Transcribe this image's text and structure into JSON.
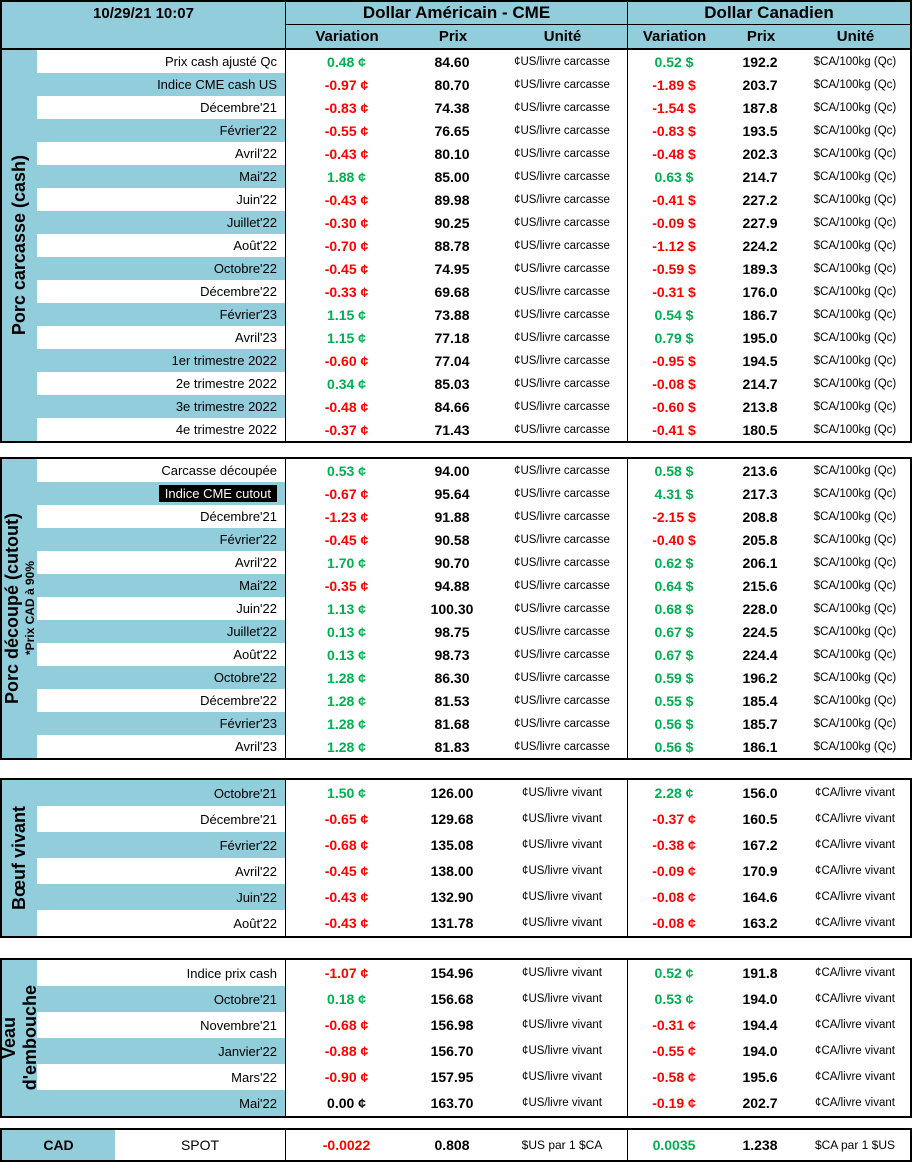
{
  "header": {
    "timestamp": "10/29/21 10:07",
    "us_group_title": "Dollar Américain - CME",
    "ca_group_title": "Dollar Canadien",
    "columns": {
      "variation": "Variation",
      "prix": "Prix",
      "unite": "Unité"
    }
  },
  "colors": {
    "panel_blue": "#92CDDC",
    "positive_green": "#00B050",
    "negative_red": "#FF0000",
    "highlight_black": "#000000"
  },
  "sections": [
    {
      "id": "porc-carcasse-cash",
      "label_lines": [
        {
          "text": "Porc carcasse (cash)",
          "size": "lg"
        }
      ],
      "unit_us": "¢US/livre carcasse",
      "unit_ca": "$CA/100kg (Qc)",
      "first_row_shaded": false,
      "rows": [
        {
          "label": "Prix cash ajusté Qc",
          "us_variation": "0.48 ¢",
          "us_prix": "84.60",
          "ca_variation": "0.52 $",
          "ca_prix": "192.2"
        },
        {
          "label": "Indice CME cash US",
          "us_variation": "-0.97 ¢",
          "us_prix": "80.70",
          "ca_variation": "-1.89 $",
          "ca_prix": "203.7"
        },
        {
          "label": "Décembre'21",
          "us_variation": "-0.83 ¢",
          "us_prix": "74.38",
          "ca_variation": "-1.54 $",
          "ca_prix": "187.8"
        },
        {
          "label": "Février'22",
          "us_variation": "-0.55 ¢",
          "us_prix": "76.65",
          "ca_variation": "-0.83 $",
          "ca_prix": "193.5"
        },
        {
          "label": "Avril'22",
          "us_variation": "-0.43 ¢",
          "us_prix": "80.10",
          "ca_variation": "-0.48 $",
          "ca_prix": "202.3"
        },
        {
          "label": "Mai'22",
          "us_variation": "1.88 ¢",
          "us_prix": "85.00",
          "ca_variation": "0.63 $",
          "ca_prix": "214.7"
        },
        {
          "label": "Juin'22",
          "us_variation": "-0.43 ¢",
          "us_prix": "89.98",
          "ca_variation": "-0.41 $",
          "ca_prix": "227.2"
        },
        {
          "label": "Juillet'22",
          "us_variation": "-0.30 ¢",
          "us_prix": "90.25",
          "ca_variation": "-0.09 $",
          "ca_prix": "227.9"
        },
        {
          "label": "Août'22",
          "us_variation": "-0.70 ¢",
          "us_prix": "88.78",
          "ca_variation": "-1.12 $",
          "ca_prix": "224.2"
        },
        {
          "label": "Octobre'22",
          "us_variation": "-0.45 ¢",
          "us_prix": "74.95",
          "ca_variation": "-0.59 $",
          "ca_prix": "189.3"
        },
        {
          "label": "Décembre'22",
          "us_variation": "-0.33 ¢",
          "us_prix": "69.68",
          "ca_variation": "-0.31 $",
          "ca_prix": "176.0"
        },
        {
          "label": "Février'23",
          "us_variation": "1.15 ¢",
          "us_prix": "73.88",
          "ca_variation": "0.54 $",
          "ca_prix": "186.7"
        },
        {
          "label": "Avril'23",
          "us_variation": "1.15 ¢",
          "us_prix": "77.18",
          "ca_variation": "0.79 $",
          "ca_prix": "195.0"
        },
        {
          "label": "1er trimestre 2022",
          "us_variation": "-0.60 ¢",
          "us_prix": "77.04",
          "ca_variation": "-0.95 $",
          "ca_prix": "194.5"
        },
        {
          "label": "2e trimestre 2022",
          "us_variation": "0.34 ¢",
          "us_prix": "85.03",
          "ca_variation": "-0.08 $",
          "ca_prix": "214.7"
        },
        {
          "label": "3e trimestre 2022",
          "us_variation": "-0.48 ¢",
          "us_prix": "84.66",
          "ca_variation": "-0.60 $",
          "ca_prix": "213.8"
        },
        {
          "label": "4e trimestre 2022",
          "us_variation": "-0.37 ¢",
          "us_prix": "71.43",
          "ca_variation": "-0.41 $",
          "ca_prix": "180.5"
        }
      ]
    },
    {
      "id": "porc-decoupe-cutout",
      "label_lines": [
        {
          "text": "Porc découpé (cutout)",
          "size": "lg"
        },
        {
          "text": "*Prix CAD à 90%",
          "size": "sm"
        }
      ],
      "unit_us": "¢US/livre carcasse",
      "unit_ca": "$CA/100kg (Qc)",
      "first_row_shaded": false,
      "rows": [
        {
          "label": "Carcasse découpée",
          "us_variation": "0.53 ¢",
          "us_prix": "94.00",
          "ca_variation": "0.58 $",
          "ca_prix": "213.6"
        },
        {
          "label": "Indice CME cutout",
          "highlight": true,
          "us_variation": "-0.67 ¢",
          "us_prix": "95.64",
          "ca_variation": "4.31 $",
          "ca_prix": "217.3"
        },
        {
          "label": "Décembre'21",
          "us_variation": "-1.23 ¢",
          "us_prix": "91.88",
          "ca_variation": "-2.15 $",
          "ca_prix": "208.8"
        },
        {
          "label": "Février'22",
          "us_variation": "-0.45 ¢",
          "us_prix": "90.58",
          "ca_variation": "-0.40 $",
          "ca_prix": "205.8"
        },
        {
          "label": "Avril'22",
          "us_variation": "1.70 ¢",
          "us_prix": "90.70",
          "ca_variation": "0.62 $",
          "ca_prix": "206.1"
        },
        {
          "label": "Mai'22",
          "us_variation": "-0.35 ¢",
          "us_prix": "94.88",
          "ca_variation": "0.64 $",
          "ca_prix": "215.6"
        },
        {
          "label": "Juin'22",
          "us_variation": "1.13 ¢",
          "us_prix": "100.30",
          "ca_variation": "0.68 $",
          "ca_prix": "228.0"
        },
        {
          "label": "Juillet'22",
          "us_variation": "0.13 ¢",
          "us_prix": "98.75",
          "ca_variation": "0.67 $",
          "ca_prix": "224.5"
        },
        {
          "label": "Août'22",
          "us_variation": "0.13 ¢",
          "us_prix": "98.73",
          "ca_variation": "0.67 $",
          "ca_prix": "224.4"
        },
        {
          "label": "Octobre'22",
          "us_variation": "1.28 ¢",
          "us_prix": "86.30",
          "ca_variation": "0.59 $",
          "ca_prix": "196.2"
        },
        {
          "label": "Décembre'22",
          "us_variation": "1.28 ¢",
          "us_prix": "81.53",
          "ca_variation": "0.55 $",
          "ca_prix": "185.4"
        },
        {
          "label": "Février'23",
          "us_variation": "1.28 ¢",
          "us_prix": "81.68",
          "ca_variation": "0.56 $",
          "ca_prix": "185.7"
        },
        {
          "label": "Avril'23",
          "us_variation": "1.28 ¢",
          "us_prix": "81.83",
          "ca_variation": "0.56 $",
          "ca_prix": "186.1"
        }
      ]
    },
    {
      "id": "boeuf-vivant",
      "label_lines": [
        {
          "text": "Bœuf vivant",
          "size": "lg"
        }
      ],
      "unit_us": "¢US/livre vivant",
      "unit_ca": "¢CA/livre vivant",
      "first_row_shaded": true,
      "rows": [
        {
          "label": "Octobre'21",
          "us_variation": "1.50 ¢",
          "us_prix": "126.00",
          "ca_variation": "2.28 ¢",
          "ca_prix": "156.0"
        },
        {
          "label": "Décembre'21",
          "us_variation": "-0.65 ¢",
          "us_prix": "129.68",
          "ca_variation": "-0.37 ¢",
          "ca_prix": "160.5"
        },
        {
          "label": "Février'22",
          "us_variation": "-0.68 ¢",
          "us_prix": "135.08",
          "ca_variation": "-0.38 ¢",
          "ca_prix": "167.2"
        },
        {
          "label": "Avril'22",
          "us_variation": "-0.45 ¢",
          "us_prix": "138.00",
          "ca_variation": "-0.09 ¢",
          "ca_prix": "170.9"
        },
        {
          "label": "Juin'22",
          "us_variation": "-0.43 ¢",
          "us_prix": "132.90",
          "ca_variation": "-0.08 ¢",
          "ca_prix": "164.6"
        },
        {
          "label": "Août'22",
          "us_variation": "-0.43 ¢",
          "us_prix": "131.78",
          "ca_variation": "-0.08 ¢",
          "ca_prix": "163.2"
        }
      ]
    },
    {
      "id": "veau-embouche",
      "label_lines": [
        {
          "text": "Veau",
          "size": "lg"
        },
        {
          "text": "d'embouche",
          "size": "lg"
        }
      ],
      "unit_us": "¢US/livre vivant",
      "unit_ca": "¢CA/livre vivant",
      "first_row_shaded": false,
      "rows": [
        {
          "label": "Indice prix cash",
          "us_variation": "-1.07 ¢",
          "us_prix": "154.96",
          "ca_variation": "0.52 ¢",
          "ca_prix": "191.8"
        },
        {
          "label": "Octobre'21",
          "us_variation": "0.18 ¢",
          "us_prix": "156.68",
          "ca_variation": "0.53 ¢",
          "ca_prix": "194.0"
        },
        {
          "label": "Novembre'21",
          "us_variation": "-0.68 ¢",
          "us_prix": "156.98",
          "ca_variation": "-0.31 ¢",
          "ca_prix": "194.4"
        },
        {
          "label": "Janvier'22",
          "us_variation": "-0.88 ¢",
          "us_prix": "156.70",
          "ca_variation": "-0.55 ¢",
          "ca_prix": "194.0"
        },
        {
          "label": "Mars'22",
          "us_variation": "-0.90 ¢",
          "us_prix": "157.95",
          "ca_variation": "-0.58 ¢",
          "ca_prix": "195.6"
        },
        {
          "label": "Mai'22",
          "us_variation": "0.00 ¢",
          "us_prix": "163.70",
          "ca_variation": "-0.19 ¢",
          "ca_prix": "202.7"
        }
      ]
    }
  ],
  "footer": {
    "title": "CAD",
    "row_label": "SPOT",
    "us_variation": "-0.0022",
    "us_prix": "0.808",
    "us_unit": "$US par 1 $CA",
    "ca_variation": "0.0035",
    "ca_prix": "1.238",
    "ca_unit": "$CA par 1 $US"
  }
}
